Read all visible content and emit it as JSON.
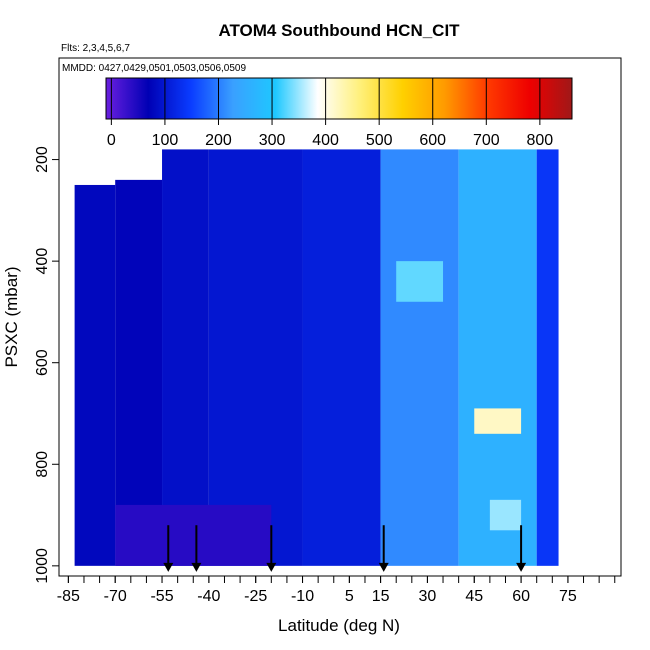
{
  "chart_data": {
    "type": "heatmap",
    "title": "ATOM4 Southbound HCN_CIT",
    "flights_label": "Flts: 2,3,4,5,6,7",
    "dates_label": "MMDD: 0427,0429,0501,0503,0506,0509",
    "xlabel": "Latitude (deg N)",
    "ylabel": "PSXC (mbar)",
    "xlim": [
      -88,
      92
    ],
    "ylim": [
      1020,
      0
    ],
    "x_ticks": [
      -85,
      -70,
      -55,
      -40,
      -25,
      -10,
      5,
      15,
      30,
      45,
      60,
      75
    ],
    "x_tick_labels": [
      "-85",
      "-70",
      "-55",
      "-40",
      "-25",
      "-10",
      "5",
      "15",
      "30",
      "45",
      "60",
      "75"
    ],
    "y_ticks": [
      200,
      400,
      600,
      800,
      1000
    ],
    "y_tick_labels": [
      "200",
      "400",
      "600",
      "800",
      "1000"
    ],
    "colorbar": {
      "range": [
        -10,
        860
      ],
      "ticks": [
        0,
        100,
        200,
        300,
        400,
        500,
        600,
        700,
        800
      ],
      "tick_labels": [
        "0",
        "100",
        "200",
        "300",
        "400",
        "500",
        "600",
        "700",
        "800"
      ],
      "colors": [
        "#6a1fe0",
        "#0000b4",
        "#0a3cff",
        "#3aa0ff",
        "#1ec8ff",
        "#ffffff",
        "#fff07a",
        "#ffd000",
        "#ff9a00",
        "#ff3a00",
        "#ee0000",
        "#a01818"
      ]
    },
    "profile_markers_lat": [
      -53,
      -44,
      -20,
      16,
      60
    ],
    "regions": [
      {
        "lat": [
          -83,
          -70
        ],
        "p": [
          250,
          1000
        ],
        "value": 80
      },
      {
        "lat": [
          -70,
          -55
        ],
        "p": [
          240,
          1000
        ],
        "value": 75
      },
      {
        "lat": [
          -55,
          -40
        ],
        "p": [
          180,
          1000
        ],
        "value": 90
      },
      {
        "lat": [
          -40,
          -10
        ],
        "p": [
          180,
          1000
        ],
        "value": 100
      },
      {
        "lat": [
          -10,
          15
        ],
        "p": [
          180,
          1000
        ],
        "value": 110
      },
      {
        "lat": [
          15,
          40
        ],
        "p": [
          180,
          1000
        ],
        "value": 210
      },
      {
        "lat": [
          40,
          65
        ],
        "p": [
          180,
          1000
        ],
        "value": 260
      },
      {
        "lat": [
          65,
          72
        ],
        "p": [
          180,
          1000
        ],
        "value": 140
      },
      {
        "lat": [
          -70,
          -20
        ],
        "p": [
          880,
          1000
        ],
        "value": 40
      },
      {
        "lat": [
          20,
          35
        ],
        "p": [
          400,
          480
        ],
        "value": 330
      },
      {
        "lat": [
          45,
          60
        ],
        "p": [
          690,
          740
        ],
        "value": 420
      },
      {
        "lat": [
          50,
          60
        ],
        "p": [
          870,
          930
        ],
        "value": 350
      }
    ]
  }
}
